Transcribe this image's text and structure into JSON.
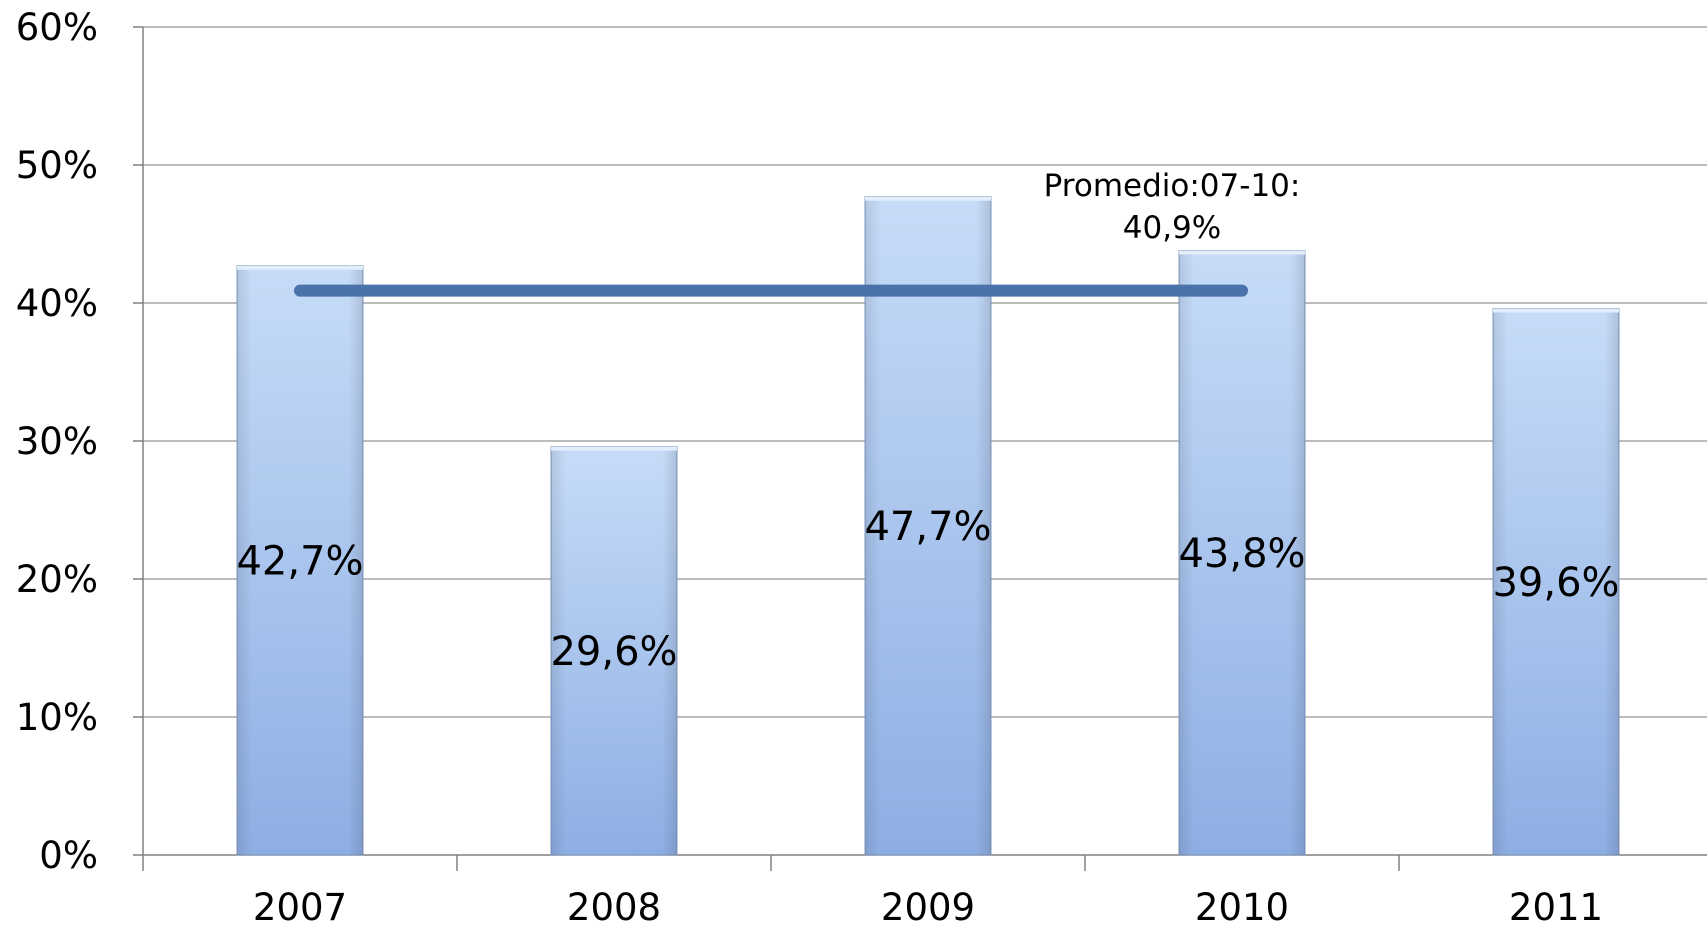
{
  "chart_data": {
    "type": "bar",
    "categories": [
      "2007",
      "2008",
      "2009",
      "2010",
      "2011"
    ],
    "values": [
      42.7,
      29.6,
      47.7,
      43.8,
      39.6
    ],
    "data_labels": [
      "42,7%",
      "29,6%",
      "47,7%",
      "43,8%",
      "39,6%"
    ],
    "ylim": [
      0,
      60
    ],
    "y_ticks": [
      0,
      10,
      20,
      30,
      40,
      50,
      60
    ],
    "y_tick_labels": [
      "0%",
      "10%",
      "20%",
      "30%",
      "40%",
      "50%",
      "60%"
    ],
    "grid": true,
    "average_line": {
      "value": 40.9,
      "from_category": "2007",
      "to_category": "2010",
      "label_lines": [
        "Promedio:07-10:",
        "40,9%"
      ]
    },
    "colors": {
      "bar_top": "#c6dcf8",
      "bar_bottom": "#8eaee3",
      "bar_edge": "#7f97bf",
      "average_line": "#4a72ab",
      "grid": "#a6a6a6",
      "axis": "#808080"
    }
  }
}
